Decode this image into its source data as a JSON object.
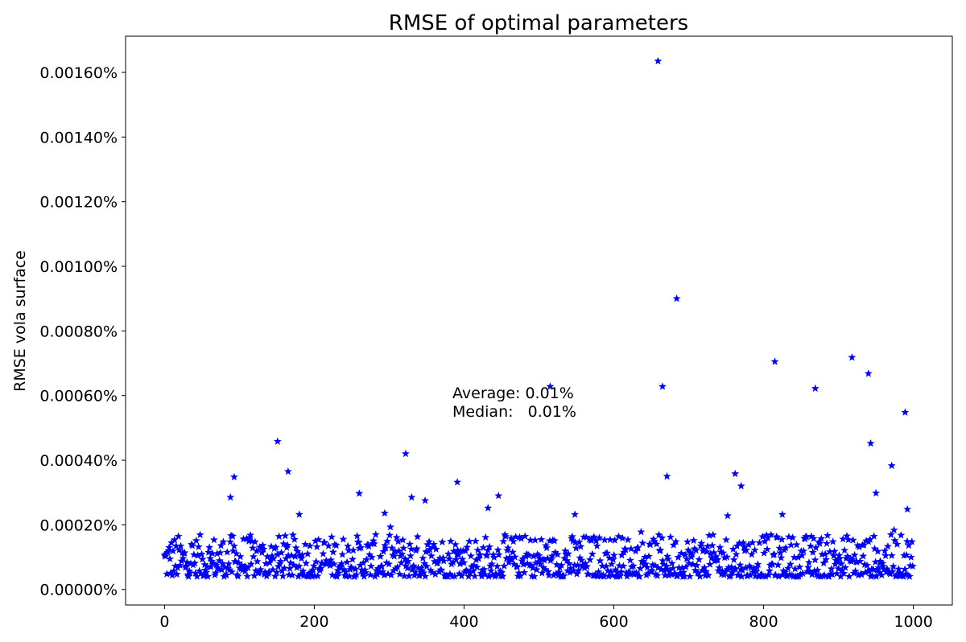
{
  "chart_data": {
    "type": "scatter",
    "title": "RMSE of optimal parameters",
    "xlabel": "",
    "ylabel": "RMSE vola surface",
    "xlim": [
      -52,
      1052
    ],
    "ylim": [
      -4.8e-05,
      0.001712
    ],
    "x_ticks": [
      0,
      200,
      400,
      600,
      800,
      1000
    ],
    "x_tick_labels": [
      "0",
      "200",
      "400",
      "600",
      "800",
      "1000"
    ],
    "y_ticks": [
      0.0,
      0.0002,
      0.0004,
      0.0006,
      0.0008,
      0.001,
      0.0012,
      0.0014,
      0.0016
    ],
    "y_tick_labels": [
      "0.00000%",
      "0.00020%",
      "0.00040%",
      "0.00060%",
      "0.00080%",
      "0.00100%",
      "0.00120%",
      "0.00140%",
      "0.00160%"
    ],
    "marker": "star",
    "color": "#0000ff",
    "grid": false,
    "annotations": [
      "Average: 0.01%",
      "Median:   0.01%"
    ],
    "outliers": [
      {
        "x": 88,
        "y": 0.000285
      },
      {
        "x": 93,
        "y": 0.000348
      },
      {
        "x": 151,
        "y": 0.000458
      },
      {
        "x": 165,
        "y": 0.000365
      },
      {
        "x": 260,
        "y": 0.000297
      },
      {
        "x": 322,
        "y": 0.00042
      },
      {
        "x": 330,
        "y": 0.000285
      },
      {
        "x": 348,
        "y": 0.000275
      },
      {
        "x": 391,
        "y": 0.000332
      },
      {
        "x": 432,
        "y": 0.000252
      },
      {
        "x": 446,
        "y": 0.00029
      },
      {
        "x": 515,
        "y": 0.000628
      },
      {
        "x": 659,
        "y": 0.001635
      },
      {
        "x": 665,
        "y": 0.000628
      },
      {
        "x": 671,
        "y": 0.00035
      },
      {
        "x": 684,
        "y": 0.0009
      },
      {
        "x": 762,
        "y": 0.000358
      },
      {
        "x": 770,
        "y": 0.00032
      },
      {
        "x": 815,
        "y": 0.000705
      },
      {
        "x": 869,
        "y": 0.000622
      },
      {
        "x": 918,
        "y": 0.000718
      },
      {
        "x": 940,
        "y": 0.000668
      },
      {
        "x": 943,
        "y": 0.000452
      },
      {
        "x": 950,
        "y": 0.000298
      },
      {
        "x": 971,
        "y": 0.000383
      },
      {
        "x": 989,
        "y": 0.000548
      },
      {
        "x": 992,
        "y": 0.000248
      },
      {
        "x": 180,
        "y": 0.000232
      },
      {
        "x": 548,
        "y": 0.000232
      },
      {
        "x": 825,
        "y": 0.000232
      },
      {
        "x": 752,
        "y": 0.000228
      },
      {
        "x": 294,
        "y": 0.000236
      }
    ],
    "bulk": {
      "count": 968,
      "x_range": [
        0,
        999
      ],
      "typical_y_range": [
        3e-05,
        0.00021
      ]
    }
  }
}
